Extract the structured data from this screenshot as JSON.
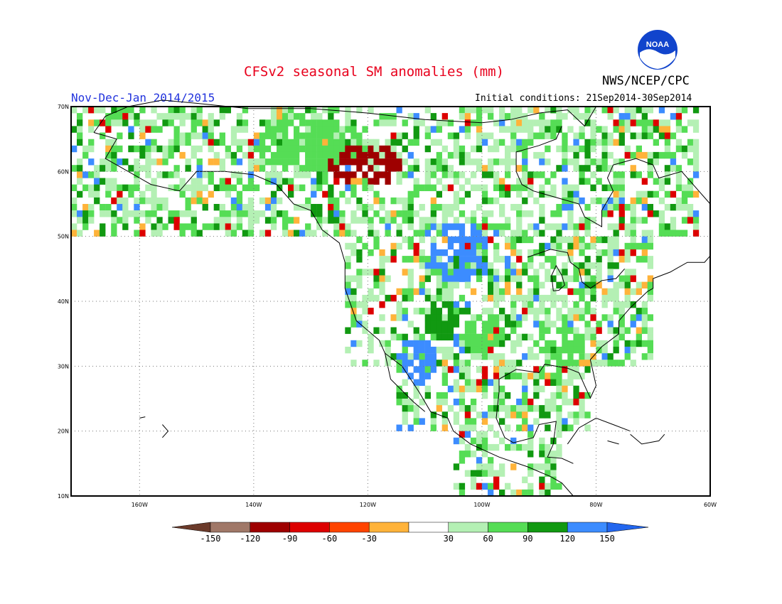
{
  "title": "CFSv2 seasonal SM anomalies (mm)",
  "agency": "NWS/NCEP/CPC",
  "logo_text": "NOAA",
  "period": "Nov-Dec-Jan 2014/2015",
  "initial_conditions": "Initial conditions: 21Sep2014-30Sep2014",
  "map": {
    "lon_range": [
      -172,
      -60
    ],
    "lat_range": [
      10,
      70
    ],
    "lat_labels": [
      "10N",
      "20N",
      "30N",
      "40N",
      "50N",
      "60N",
      "70N"
    ],
    "lon_labels": [
      "160W",
      "140W",
      "120W",
      "100W",
      "80W",
      "60W"
    ],
    "gridlines": "dotted"
  },
  "legend": {
    "labels": [
      "-150",
      "-120",
      "-90",
      "-60",
      "-30",
      "30",
      "60",
      "90",
      "120",
      "150"
    ],
    "colors": [
      "#6b3a2a",
      "#a07868",
      "#9e0000",
      "#dd0000",
      "#ff4400",
      "#ffb33a",
      "#ffffff",
      "#b4f0b4",
      "#55dd55",
      "#119911",
      "#3c8cff",
      "#2266ee"
    ]
  }
}
